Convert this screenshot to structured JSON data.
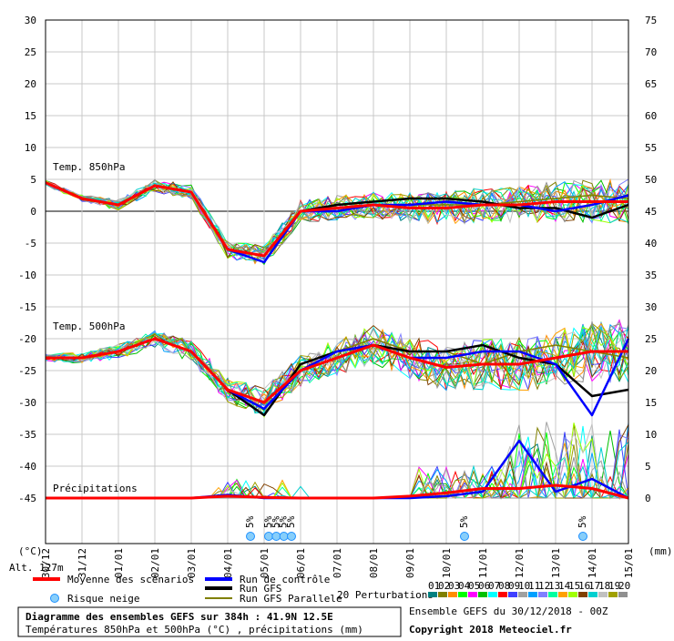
{
  "chart_data": {
    "type": "line",
    "title": "Diagramme des ensembles GEFS sur 384h : 41.9N 12.5E",
    "subtitle": "Températures 850hPa et 500hPa (°C) , précipitations (mm)",
    "run_info": "Ensemble GEFS du 30/12/2018 - 00Z",
    "copyright": "Copyright 2018 Meteociel.fr",
    "left_axis_unit": "(°C)",
    "right_axis_unit": "(mm)",
    "altitude": "Alt. 127m",
    "left_ticks": [
      30,
      25,
      20,
      15,
      10,
      5,
      0,
      -5,
      -10,
      -15,
      -20,
      -25,
      -30,
      -35,
      -40,
      -45
    ],
    "right_ticks": [
      75,
      70,
      65,
      60,
      55,
      50,
      45,
      40,
      35,
      30,
      25,
      20,
      15,
      10,
      5,
      0
    ],
    "ylim_temp": [
      -45,
      30
    ],
    "ylim_precip": [
      0,
      75
    ],
    "x_labels": [
      "30/12",
      "31/12",
      "01/01",
      "02/01",
      "03/01",
      "04/01",
      "05/01",
      "06/01",
      "07/01",
      "08/01",
      "09/01",
      "10/01",
      "11/01",
      "12/01",
      "13/01",
      "14/01",
      "15/01"
    ],
    "section_labels": {
      "t850": "Temp. 850hPa",
      "t500": "Temp. 500hPa",
      "precip": "Précipitations"
    },
    "x_hours": [
      0,
      24,
      48,
      72,
      96,
      120,
      144,
      168,
      192,
      216,
      240,
      264,
      288,
      312,
      336,
      360,
      384
    ],
    "series": [
      {
        "name": "Moyenne des scénarios",
        "field": "T850",
        "color": "#ff0000",
        "values": [
          4.5,
          2,
          1,
          4,
          3,
          -6,
          -7,
          0,
          0.5,
          1,
          0.5,
          0.5,
          1,
          1,
          1.5,
          1.5,
          1.5
        ]
      },
      {
        "name": "Moyenne des scénarios",
        "field": "T500",
        "color": "#ff0000",
        "values": [
          -23,
          -23,
          -22,
          -20,
          -22,
          -28,
          -30,
          -25,
          -23,
          -21,
          -23,
          -24.5,
          -24,
          -24,
          -23,
          -22,
          -22
        ]
      },
      {
        "name": "Moyenne des scénarios",
        "field": "Precip",
        "color": "#ff0000",
        "values": [
          0,
          0,
          0,
          0,
          0,
          0.3,
          0.1,
          0,
          0,
          0,
          0.3,
          0.8,
          1.5,
          1.5,
          2,
          1.5,
          0
        ]
      },
      {
        "name": "Run de contrôle",
        "field": "T850",
        "color": "#0000ff",
        "values": [
          4.5,
          2,
          1,
          4,
          3,
          -6,
          -8,
          0,
          0,
          1,
          1,
          1.5,
          1,
          1,
          0,
          1,
          2.5
        ]
      },
      {
        "name": "Run de contrôle",
        "field": "T500",
        "color": "#0000ff",
        "values": [
          -23,
          -23,
          -22,
          -20,
          -22,
          -28,
          -31,
          -25,
          -22,
          -21,
          -23,
          -23,
          -22,
          -22,
          -24,
          -32,
          -20
        ]
      },
      {
        "name": "Run de contrôle",
        "field": "Precip",
        "color": "#0000ff",
        "values": [
          0,
          0,
          0,
          0,
          0,
          0.5,
          0,
          0,
          0,
          0,
          0,
          0.3,
          1,
          9,
          1,
          3,
          0
        ]
      },
      {
        "name": "Run GFS",
        "field": "T850",
        "color": "#000000",
        "values": [
          4.5,
          2,
          1,
          4,
          3,
          -6,
          -7,
          0,
          1,
          1.5,
          2,
          2,
          1.5,
          0.5,
          0.5,
          -1,
          1
        ]
      },
      {
        "name": "Run GFS",
        "field": "T500",
        "color": "#000000",
        "values": [
          -23,
          -23,
          -22,
          -20,
          -22,
          -28,
          -32,
          -24,
          -22,
          -21,
          -22,
          -22,
          -21,
          -23,
          -24,
          -29,
          -28
        ]
      },
      {
        "name": "Run GFS Parallele",
        "field": "T850",
        "color": "#808000",
        "values": [
          4.5,
          2,
          1,
          4,
          3,
          -6,
          -7,
          0,
          0.5,
          1,
          1,
          1,
          1,
          1.5,
          2,
          2.5,
          2
        ]
      },
      {
        "name": "Run GFS Parallele",
        "field": "T500",
        "color": "#808000",
        "values": [
          -23,
          -23,
          -22,
          -20,
          -22,
          -28,
          -30,
          -25,
          -22,
          -20,
          -22,
          -22,
          -24,
          -22,
          -21,
          -22,
          -23
        ]
      }
    ],
    "legend": [
      {
        "label": "Moyenne des scénarios",
        "color": "#ff0000"
      },
      {
        "label": "Run de contrôle",
        "color": "#0000ff"
      },
      {
        "label": "Run GFS",
        "color": "#000000"
      },
      {
        "label": "Run GFS Parallele",
        "color": "#808000"
      },
      {
        "label": "Risque neige",
        "color": "#1e90ff"
      },
      {
        "label": "20 Perturbations",
        "color": "#808080"
      }
    ],
    "perturbation_ids": [
      "01",
      "02",
      "03",
      "04",
      "05",
      "06",
      "07",
      "08",
      "09",
      "10",
      "11",
      "12",
      "13",
      "14",
      "15",
      "16",
      "17",
      "18",
      "19",
      "20"
    ],
    "perturbation_colors": [
      "#008080",
      "#808000",
      "#ff8c00",
      "#00ff00",
      "#ff00ff",
      "#00c000",
      "#00ffff",
      "#ff0000",
      "#4040ff",
      "#a0a0a0",
      "#00a0ff",
      "#8080ff",
      "#00ffa0",
      "#ffa000",
      "#a0ff00",
      "#804000",
      "#00d0d0",
      "#c0c0c0",
      "#a0a000",
      "#909090"
    ],
    "snow_risk": [
      {
        "label": "5%",
        "hour": 135
      },
      {
        "label": "5%",
        "hour": 147
      },
      {
        "label": "5%",
        "hour": 152
      },
      {
        "label": "5%",
        "hour": 157
      },
      {
        "label": "5%",
        "hour": 162
      },
      {
        "label": "5%",
        "hour": 276
      },
      {
        "label": "5%",
        "hour": 354
      }
    ]
  }
}
